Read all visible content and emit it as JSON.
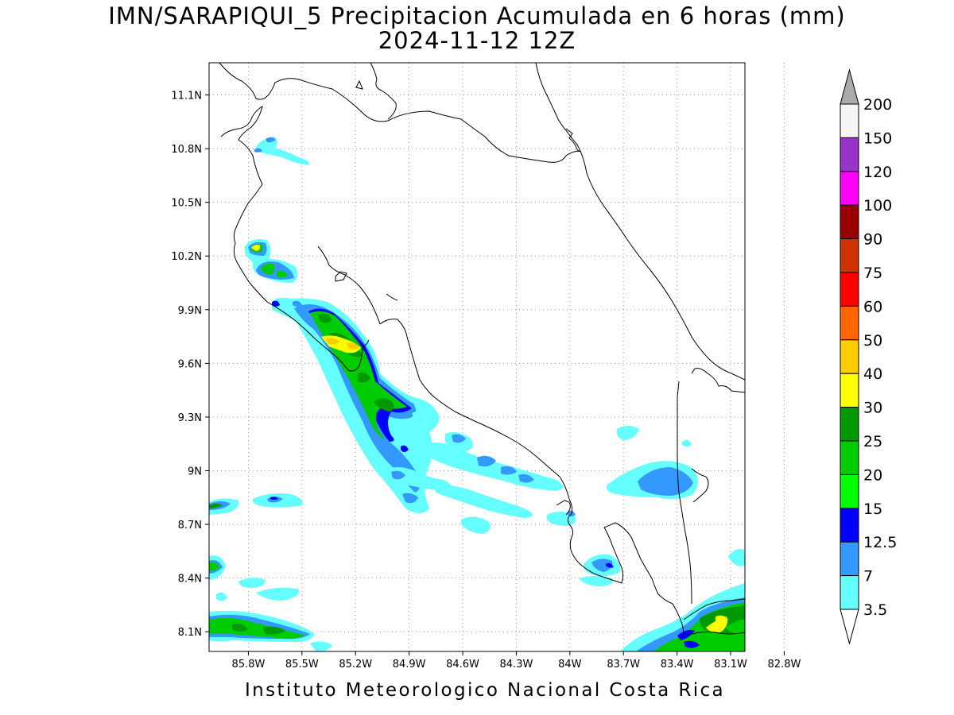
{
  "title": {
    "line1": "IMN/SARAPIQUI_5 Precipitacion Acumulada en 6 horas (mm)",
    "line2": "2024-11-12 12Z"
  },
  "footer": "Instituto Meteorologico Nacional Costa Rica",
  "map": {
    "lon_range": [
      -86.02,
      -83.02
    ],
    "lat_range": [
      7.99,
      11.28
    ],
    "grid": "dotted",
    "lat_ticks": [
      "11.1N",
      "10.8N",
      "10.5N",
      "10.2N",
      "9.9N",
      "9.6N",
      "9.3N",
      "9N",
      "8.7N",
      "8.4N",
      "8.1N"
    ],
    "lat_values": [
      11.1,
      10.8,
      10.5,
      10.2,
      9.9,
      9.6,
      9.3,
      9.0,
      8.7,
      8.4,
      8.1
    ],
    "lon_ticks": [
      "85.8W",
      "85.5W",
      "85.2W",
      "84.9W",
      "84.6W",
      "84.3W",
      "84W",
      "83.7W",
      "83.4W",
      "83.1W",
      "82.8W"
    ],
    "lon_values": [
      -85.8,
      -85.5,
      -85.2,
      -84.9,
      -84.6,
      -84.3,
      -84.0,
      -83.7,
      -83.4,
      -83.1,
      -82.8
    ]
  },
  "colorbar": {
    "labels": [
      "3.5",
      "7",
      "12.5",
      "15",
      "20",
      "25",
      "30",
      "40",
      "50",
      "60",
      "75",
      "90",
      "100",
      "120",
      "150",
      "200"
    ],
    "colors": [
      "#66ffff",
      "#3399ff",
      "#0000ff",
      "#00ff00",
      "#00cc00",
      "#009900",
      "#ffff00",
      "#ffcc00",
      "#ff6600",
      "#ff0000",
      "#cc3300",
      "#990000",
      "#ff00ff",
      "#9933cc",
      "#f5f5f5"
    ],
    "under_color": "#ffffff",
    "over_color": "#aaaaaa"
  }
}
